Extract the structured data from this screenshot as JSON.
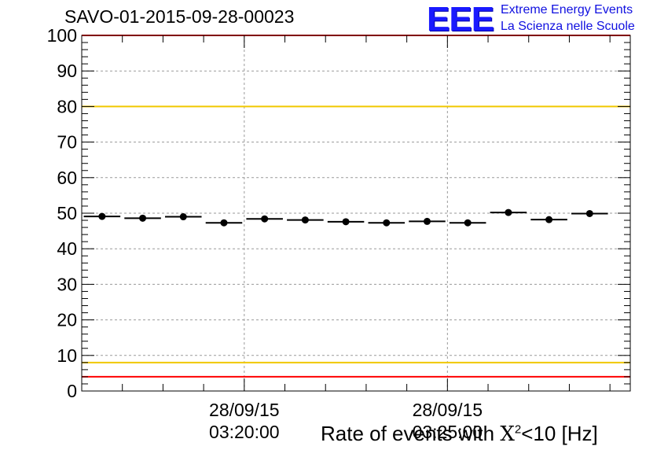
{
  "title": "SAVO-01-2015-09-28-00023",
  "logo": {
    "mark": "EEE",
    "line1": "Extreme Energy Events",
    "line2": "La Scienza nelle Scuole"
  },
  "xlabel": {
    "prefix": "Rate of events with ",
    "chi": "X",
    "sup": "2",
    "suffix": "<10 [Hz]"
  },
  "chart_data": {
    "type": "scatter",
    "title": "SAVO-01-2015-09-28-00023",
    "xlabel": "Rate of events with X2<10 [Hz]",
    "ylabel": "",
    "ylim": [
      0,
      100
    ],
    "yticks": [
      0,
      10,
      20,
      30,
      40,
      50,
      60,
      70,
      80,
      90,
      100
    ],
    "x_axis": {
      "type": "time",
      "start": "28/09/15 03:16:00",
      "end": "28/09/15 03:29:30",
      "major_ticks": [
        {
          "x": "28/09/15 03:20:00",
          "date": "28/09/15",
          "time": "03:20:00"
        },
        {
          "x": "28/09/15 03:25:00",
          "date": "28/09/15",
          "time": "03:25:00"
        }
      ]
    },
    "grid": true,
    "reference_lines": [
      {
        "y": 100,
        "color": "#ff0000"
      },
      {
        "y": 80,
        "color": "#f0c800"
      },
      {
        "y": 8,
        "color": "#f0c800"
      },
      {
        "y": 4,
        "color": "#ff0000"
      }
    ],
    "series": [
      {
        "marker_color": "#000000",
        "points": [
          {
            "x": "03:16:30",
            "y": 49.1
          },
          {
            "x": "03:17:30",
            "y": 48.6
          },
          {
            "x": "03:18:30",
            "y": 49.0
          },
          {
            "x": "03:19:30",
            "y": 47.3
          },
          {
            "x": "03:20:30",
            "y": 48.4
          },
          {
            "x": "03:21:30",
            "y": 48.1
          },
          {
            "x": "03:22:30",
            "y": 47.6
          },
          {
            "x": "03:23:30",
            "y": 47.3
          },
          {
            "x": "03:24:30",
            "y": 47.7
          },
          {
            "x": "03:25:30",
            "y": 47.3
          },
          {
            "x": "03:26:30",
            "y": 50.2
          },
          {
            "x": "03:27:30",
            "y": 48.2
          },
          {
            "x": "03:28:30",
            "y": 49.9
          }
        ]
      }
    ]
  }
}
